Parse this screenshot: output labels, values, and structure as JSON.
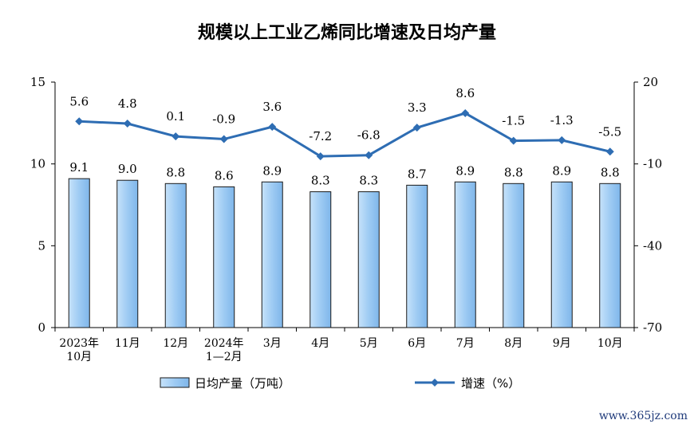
{
  "chart_data": {
    "type": "bar+line",
    "title": "规模以上工业乙烯同比增速及日均产量",
    "categories": [
      [
        "2023年",
        "10月"
      ],
      [
        "11月"
      ],
      [
        "12月"
      ],
      [
        "2024年",
        "1—2月"
      ],
      [
        "3月"
      ],
      [
        "4月"
      ],
      [
        "5月"
      ],
      [
        "6月"
      ],
      [
        "7月"
      ],
      [
        "8月"
      ],
      [
        "9月"
      ],
      [
        "10月"
      ]
    ],
    "series": [
      {
        "name": "日均产量（万吨）",
        "kind": "bar",
        "axis": "left",
        "values": [
          9.1,
          9.0,
          8.8,
          8.6,
          8.9,
          8.3,
          8.3,
          8.7,
          8.9,
          8.8,
          8.9,
          8.8
        ],
        "labels": [
          "9.1",
          "9.0",
          "8.8",
          "8.6",
          "8.9",
          "8.3",
          "8.3",
          "8.7",
          "8.9",
          "8.8",
          "8.9",
          "8.8"
        ]
      },
      {
        "name": "增速（%）",
        "kind": "line",
        "axis": "right",
        "values": [
          5.6,
          4.8,
          0.1,
          -0.9,
          3.6,
          -7.2,
          -6.8,
          3.3,
          8.6,
          -1.5,
          -1.3,
          -5.5
        ],
        "labels": [
          "5.6",
          "4.8",
          "0.1",
          "-0.9",
          "3.6",
          "-7.2",
          "-6.8",
          "3.3",
          "8.6",
          "-1.5",
          "-1.3",
          "-5.5"
        ]
      }
    ],
    "left_axis": {
      "min": 0,
      "max": 15,
      "ticks": [
        "0",
        "5",
        "10",
        "15"
      ]
    },
    "right_axis": {
      "min": -70,
      "max": 20,
      "ticks": [
        "-70",
        "-40",
        "-10",
        "20"
      ]
    },
    "colors": {
      "bar_fill": "#9ecbf3",
      "bar_stroke": "#1a1a1a",
      "line": "#2e6db3"
    }
  },
  "watermark": "www.365jz.com"
}
